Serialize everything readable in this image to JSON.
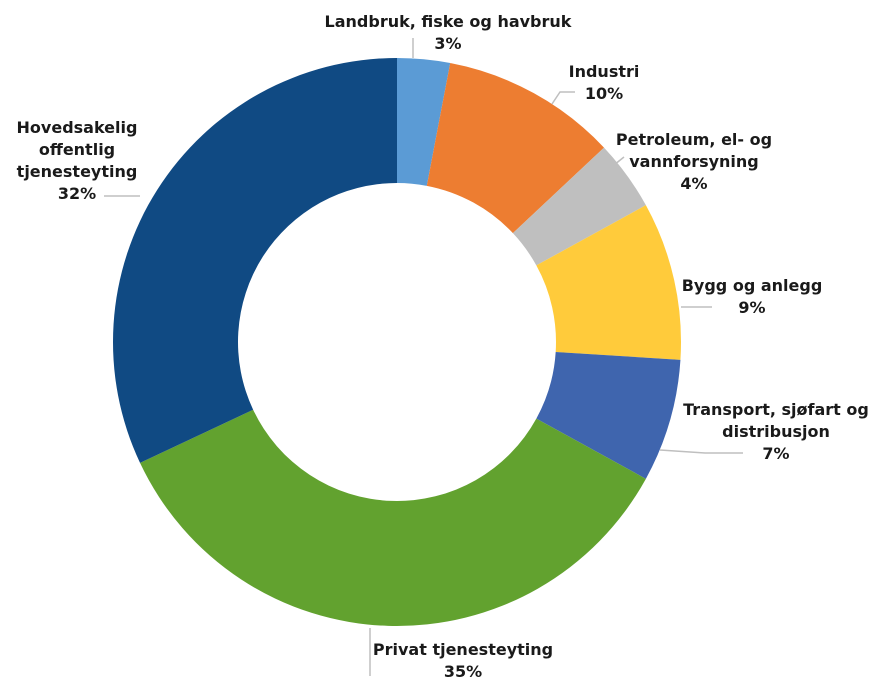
{
  "chart_data": {
    "type": "pie",
    "title": "",
    "unit": "%",
    "categories": [
      "Landbruk, fiske og havbruk",
      "Industri",
      "Petroleum, el- og vannforsyning",
      "Bygg og anlegg",
      "Transport, sjøfart og distribusjon",
      "Privat tjenesteyting",
      "Hovedsakelig offentlig tjenesteyting"
    ],
    "values": [
      3,
      10,
      4,
      9,
      7,
      35,
      32
    ],
    "value_labels": [
      "3%",
      "10%",
      "4%",
      "9%",
      "7%",
      "35%",
      "32%"
    ],
    "label_lines": [
      [
        "Landbruk, fiske og havbruk"
      ],
      [
        "Industri"
      ],
      [
        "Petroleum, el- og",
        "vannforsyning"
      ],
      [
        "Bygg og anlegg"
      ],
      [
        "Transport, sjøfart og",
        "distribusjon"
      ],
      [
        "Privat tjenesteyting"
      ],
      [
        "Hovedsakelig",
        "offentlig",
        "tjenesteyting"
      ]
    ],
    "colors": [
      "#5b9bd5",
      "#ed7d31",
      "#bfbfbf",
      "#ffcb3b",
      "#3f65ae",
      "#62a22f",
      "#104a83"
    ],
    "donut": true,
    "legend": "none",
    "grid": false
  }
}
